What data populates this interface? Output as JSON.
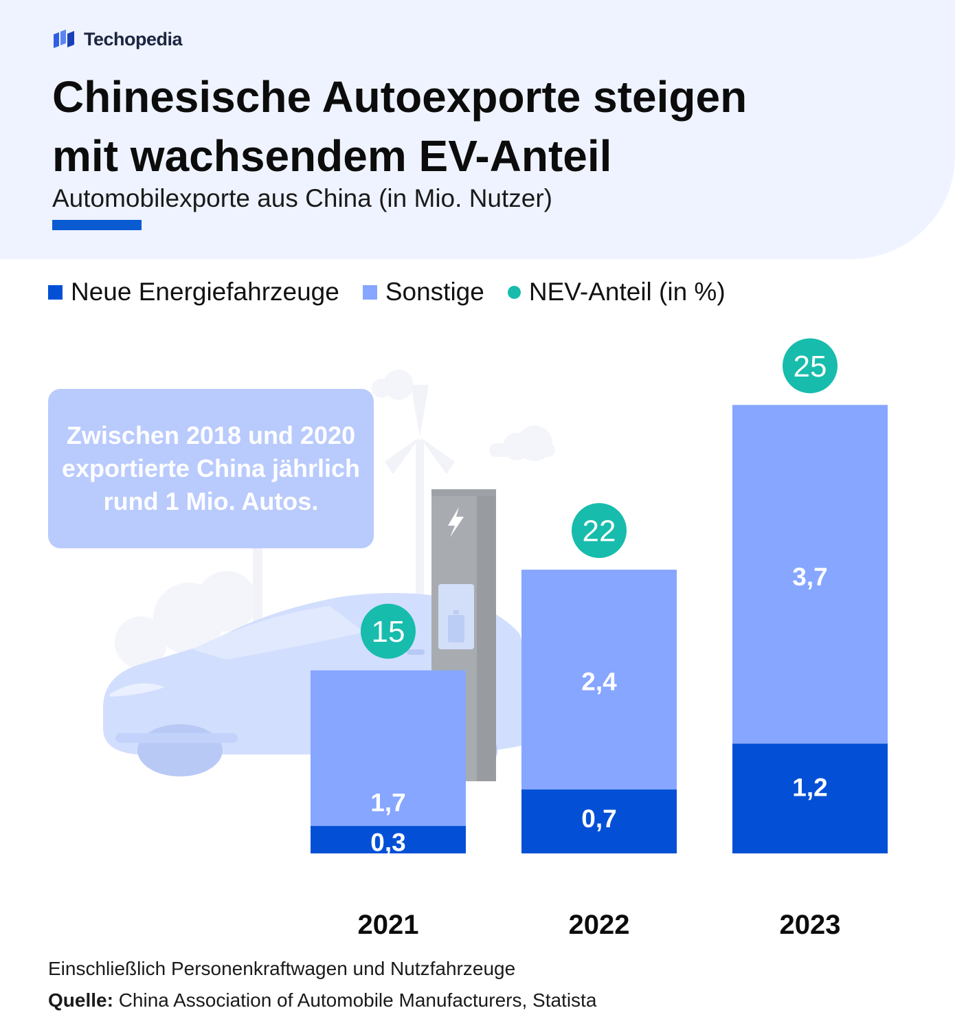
{
  "brand": {
    "name": "Techopedia",
    "icon": "techopedia-logo-icon"
  },
  "header": {
    "title_line1": "Chinesische Autoexporte steigen",
    "title_line2": "mit wachsendem EV-Anteil",
    "subtitle": "Automobilexporte aus China (in Mio. Nutzer)"
  },
  "legend": {
    "nev": "Neue Energiefahrzeuge",
    "other": "Sonstige",
    "share": "NEV-Anteil (in %)"
  },
  "note": "Zwischen 2018 und 2020 exportierte China jährlich rund 1 Mio. Autos.",
  "colors": {
    "nev": "#0350d6",
    "other": "#86a6ff",
    "share": "#17bcac",
    "note_bg": "#b9cafd"
  },
  "chart_data": {
    "type": "bar",
    "stacked": true,
    "title": "Chinesische Autoexporte steigen mit wachsendem EV-Anteil",
    "ylabel": "Automobilexporte aus China (in Mio. Nutzer)",
    "categories": [
      "2021",
      "2022",
      "2023"
    ],
    "series": [
      {
        "name": "Neue Energiefahrzeuge",
        "values": [
          0.3,
          0.7,
          1.2
        ],
        "labels": [
          "0,3",
          "0,7",
          "1,2"
        ]
      },
      {
        "name": "Sonstige",
        "values": [
          1.7,
          2.4,
          3.7
        ],
        "labels": [
          "1,7",
          "2,4",
          "3,7"
        ]
      }
    ],
    "nev_share_percent": [
      15,
      22,
      25
    ],
    "ylim": [
      0,
      5
    ],
    "grid": false,
    "legend_position": "top-left"
  },
  "footnote": "Einschließlich Personenkraftwagen und Nutzfahrzeuge",
  "source": {
    "label": "Quelle:",
    "text": "China Association of Automobile Manufacturers, Statista"
  }
}
